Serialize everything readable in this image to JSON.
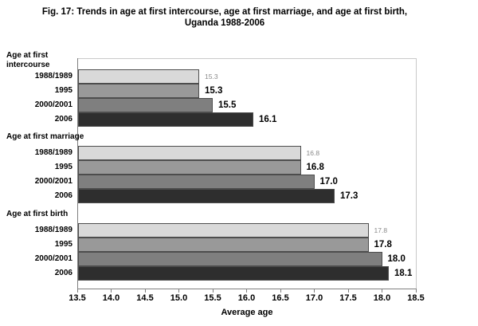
{
  "title": {
    "line1": "Fig. 17:  Trends in age at first intercourse, age at first marriage, and age at first birth,",
    "line2": "Uganda 1988-2006"
  },
  "chart_data": {
    "type": "bar",
    "orientation": "horizontal",
    "title": "Fig. 17: Trends in age at first intercourse, age at first marriage, and age at first birth, Uganda 1988-2006",
    "xlabel": "Average age",
    "xlim": [
      13.5,
      18.5
    ],
    "xticks": [
      13.5,
      14.0,
      14.5,
      15.0,
      15.5,
      16.0,
      16.5,
      17.0,
      17.5,
      18.0,
      18.5
    ],
    "grid": false,
    "legend": "none",
    "series_names": [
      "1988/1989",
      "1995",
      "2000/2001",
      "2006"
    ],
    "series_colors": [
      "#d9d9d9",
      "#999999",
      "#7f7f7f",
      "#2e2e2e"
    ],
    "value_label_colors": [
      "#8a8a8a",
      "#000000",
      "#000000",
      "#000000"
    ],
    "groups": [
      {
        "label": "Age at first intercourse",
        "label_lines": [
          "Age at first",
          "intercourse"
        ],
        "categories": [
          "1988/1989",
          "1995",
          "2000/2001",
          "2006"
        ],
        "values": [
          15.3,
          15.3,
          15.5,
          16.1
        ],
        "value_labels": [
          "15.3",
          "15.3",
          "15.5",
          "16.1"
        ]
      },
      {
        "label": "Age at first marriage",
        "label_lines": [
          "Age at first marriage"
        ],
        "categories": [
          "1988/1989",
          "1995",
          "2000/2001",
          "2006"
        ],
        "values": [
          16.8,
          16.8,
          17.0,
          17.3
        ],
        "value_labels": [
          "16.8",
          "16.8",
          "17.0",
          "17.3"
        ]
      },
      {
        "label": "Age at first birth",
        "label_lines": [
          "Age at first birth"
        ],
        "categories": [
          "1988/1989",
          "1995",
          "2000/2001",
          "2006"
        ],
        "values": [
          17.8,
          17.8,
          18.0,
          18.1
        ],
        "value_labels": [
          "17.8",
          "17.8",
          "18.0",
          "18.1"
        ]
      }
    ]
  }
}
